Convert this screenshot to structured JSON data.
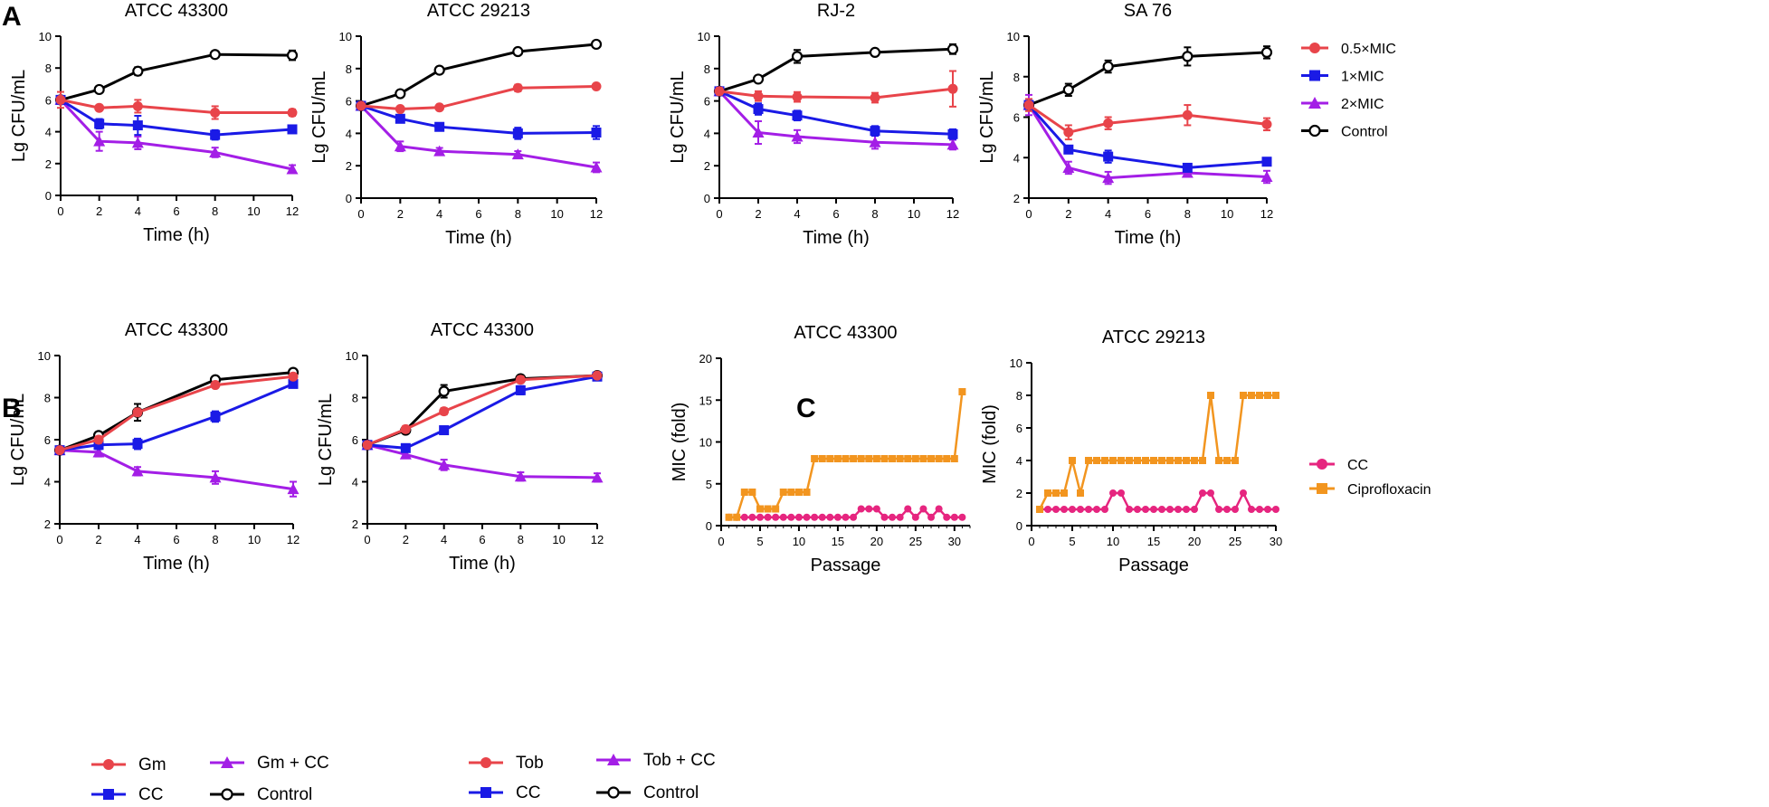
{
  "panel_labels": {
    "a": "A",
    "b": "B",
    "c": "C"
  },
  "colors": {
    "red": "#e8444a",
    "blue": "#1a1ae6",
    "purple": "#a31ee6",
    "black": "#000000",
    "pink": "#e6257f",
    "orange": "#f2951f"
  },
  "legend_a": [
    {
      "label": "0.5×MIC",
      "color": "red",
      "marker": "circle"
    },
    {
      "label": "1×MIC",
      "color": "blue",
      "marker": "square"
    },
    {
      "label": "2×MIC",
      "color": "purple",
      "marker": "triangle"
    },
    {
      "label": "Control",
      "color": "black",
      "marker": "open-circle"
    }
  ],
  "legend_b1": [
    {
      "label": "Gm",
      "color": "red",
      "marker": "circle"
    },
    {
      "label": "Gm + CC",
      "color": "purple",
      "marker": "triangle"
    },
    {
      "label": "CC",
      "color": "blue",
      "marker": "square"
    },
    {
      "label": "Control",
      "color": "black",
      "marker": "open-circle"
    }
  ],
  "legend_b2": [
    {
      "label": "Tob",
      "color": "red",
      "marker": "circle"
    },
    {
      "label": "Tob + CC",
      "color": "purple",
      "marker": "triangle"
    },
    {
      "label": "CC",
      "color": "blue",
      "marker": "square"
    },
    {
      "label": "Control",
      "color": "black",
      "marker": "open-circle"
    }
  ],
  "legend_c": [
    {
      "label": "CC",
      "color": "pink",
      "marker": "circle"
    },
    {
      "label": "Ciprofloxacin",
      "color": "orange",
      "marker": "square"
    }
  ],
  "chart_data": [
    {
      "id": "a1",
      "type": "line",
      "title": "ATCC 43300",
      "xlabel": "Time (h)",
      "ylabel": "Lg CFU/mL",
      "xlim": [
        0,
        12
      ],
      "ylim": [
        0,
        10
      ],
      "xticks": [
        0,
        2,
        4,
        6,
        8,
        10,
        12
      ],
      "yticks": [
        0,
        2,
        4,
        6,
        8,
        10
      ],
      "x": [
        0,
        2,
        4,
        8,
        12
      ],
      "series": [
        {
          "name": "0.5×MIC",
          "values": [
            6.0,
            5.5,
            5.6,
            5.2,
            5.2
          ],
          "err": [
            0.5,
            0.1,
            0.4,
            0.4,
            0.2
          ]
        },
        {
          "name": "1×MIC",
          "values": [
            6.0,
            4.5,
            4.4,
            3.8,
            4.15
          ],
          "err": [
            0.2,
            0.3,
            0.6,
            0.3,
            0.15
          ]
        },
        {
          "name": "2×MIC",
          "values": [
            6.0,
            3.4,
            3.3,
            2.7,
            1.65
          ],
          "err": [
            0.2,
            0.6,
            0.4,
            0.3,
            0.25
          ]
        },
        {
          "name": "Control",
          "values": [
            6.0,
            6.65,
            7.8,
            8.85,
            8.8
          ],
          "err": [
            0.1,
            0.2,
            0.25,
            0.15,
            0.3
          ]
        }
      ]
    },
    {
      "id": "a2",
      "type": "line",
      "title": "ATCC 29213",
      "xlabel": "Time (h)",
      "ylabel": "Lg CFU/mL",
      "xlim": [
        0,
        12
      ],
      "ylim": [
        0,
        10
      ],
      "xticks": [
        0,
        2,
        4,
        6,
        8,
        10,
        12
      ],
      "yticks": [
        0,
        2,
        4,
        6,
        8,
        10
      ],
      "x": [
        0,
        2,
        4,
        8,
        12
      ],
      "series": [
        {
          "name": "0.5×MIC",
          "values": [
            5.7,
            5.5,
            5.6,
            6.8,
            6.9
          ],
          "err": [
            0.1,
            0.1,
            0.1,
            0.2,
            0.15
          ]
        },
        {
          "name": "1×MIC",
          "values": [
            5.7,
            4.9,
            4.4,
            4.0,
            4.05
          ],
          "err": [
            0.1,
            0.1,
            0.1,
            0.35,
            0.4
          ]
        },
        {
          "name": "2×MIC",
          "values": [
            5.7,
            3.2,
            2.9,
            2.7,
            1.9
          ],
          "err": [
            0.1,
            0.3,
            0.2,
            0.2,
            0.3
          ]
        },
        {
          "name": "Control",
          "values": [
            5.7,
            6.45,
            7.9,
            9.05,
            9.5
          ],
          "err": [
            0.1,
            0.1,
            0.1,
            0.1,
            0.1
          ]
        }
      ]
    },
    {
      "id": "a3",
      "type": "line",
      "title": "RJ-2",
      "xlabel": "Time (h)",
      "ylabel": "Lg CFU/mL",
      "xlim": [
        0,
        12
      ],
      "ylim": [
        0,
        10
      ],
      "xticks": [
        0,
        2,
        4,
        6,
        8,
        10,
        12
      ],
      "yticks": [
        0,
        2,
        4,
        6,
        8,
        10
      ],
      "x": [
        0,
        2,
        4,
        8,
        12
      ],
      "series": [
        {
          "name": "0.5×MIC",
          "values": [
            6.6,
            6.3,
            6.25,
            6.2,
            6.75
          ],
          "err": [
            0.2,
            0.3,
            0.3,
            0.3,
            1.1
          ]
        },
        {
          "name": "1×MIC",
          "values": [
            6.6,
            5.5,
            5.1,
            4.15,
            3.95
          ],
          "err": [
            0.2,
            0.35,
            0.3,
            0.3,
            0.3
          ]
        },
        {
          "name": "2×MIC",
          "values": [
            6.6,
            4.05,
            3.8,
            3.45,
            3.3
          ],
          "err": [
            0.2,
            0.7,
            0.4,
            0.4,
            0.3
          ]
        },
        {
          "name": "Control",
          "values": [
            6.6,
            7.35,
            8.75,
            9.0,
            9.2
          ],
          "err": [
            0.2,
            0.2,
            0.4,
            0.15,
            0.3
          ]
        }
      ]
    },
    {
      "id": "a4",
      "type": "line",
      "title": "SA 76",
      "xlabel": "Time (h)",
      "ylabel": "Lg CFU/mL",
      "xlim": [
        0,
        12
      ],
      "ylim": [
        2,
        10
      ],
      "xticks": [
        0,
        2,
        4,
        6,
        8,
        10,
        12
      ],
      "yticks": [
        2,
        4,
        6,
        8,
        10
      ],
      "x": [
        0,
        2,
        4,
        8,
        12
      ],
      "series": [
        {
          "name": "0.5×MIC",
          "values": [
            6.6,
            5.25,
            5.7,
            6.1,
            5.65
          ],
          "err": [
            0.3,
            0.35,
            0.3,
            0.5,
            0.3
          ]
        },
        {
          "name": "1×MIC",
          "values": [
            6.6,
            4.4,
            4.05,
            3.5,
            3.8
          ],
          "err": [
            0.2,
            0.1,
            0.3,
            0.1,
            0.1
          ]
        },
        {
          "name": "2×MIC",
          "values": [
            6.6,
            3.5,
            3.0,
            3.25,
            3.05
          ],
          "err": [
            0.5,
            0.3,
            0.3,
            0.1,
            0.3
          ]
        },
        {
          "name": "Control",
          "values": [
            6.6,
            7.35,
            8.5,
            9.0,
            9.2
          ],
          "err": [
            0.2,
            0.3,
            0.3,
            0.45,
            0.3
          ]
        }
      ]
    },
    {
      "id": "b1",
      "type": "line",
      "title": "ATCC 43300",
      "xlabel": "Time (h)",
      "ylabel": "Lg CFU/mL",
      "xlim": [
        0,
        12
      ],
      "ylim": [
        2,
        10
      ],
      "xticks": [
        0,
        2,
        4,
        6,
        8,
        10,
        12
      ],
      "yticks": [
        2,
        4,
        6,
        8,
        10
      ],
      "x": [
        0,
        2,
        4,
        8,
        12
      ],
      "series": [
        {
          "name": "Gm",
          "values": [
            5.5,
            6.0,
            7.3,
            8.6,
            9.0
          ],
          "err": [
            0.1,
            0.15,
            0.15,
            0.1,
            0.1
          ]
        },
        {
          "name": "CC",
          "values": [
            5.5,
            5.75,
            5.8,
            7.1,
            8.65
          ],
          "err": [
            0.1,
            0.2,
            0.25,
            0.25,
            0.15
          ]
        },
        {
          "name": "Gm + CC",
          "values": [
            5.5,
            5.4,
            4.5,
            4.2,
            3.65
          ],
          "err": [
            0.1,
            0.2,
            0.2,
            0.3,
            0.35
          ]
        },
        {
          "name": "Control",
          "values": [
            5.5,
            6.2,
            7.3,
            8.85,
            9.2
          ],
          "err": [
            0.1,
            0.15,
            0.4,
            0.1,
            0.1
          ]
        }
      ]
    },
    {
      "id": "b2",
      "type": "line",
      "title": "ATCC 43300",
      "xlabel": "Time (h)",
      "ylabel": "Lg CFU/mL",
      "xlim": [
        0,
        12
      ],
      "ylim": [
        2,
        10
      ],
      "xticks": [
        0,
        2,
        4,
        6,
        8,
        10,
        12
      ],
      "yticks": [
        2,
        4,
        6,
        8,
        10
      ],
      "x": [
        0,
        2,
        4,
        8,
        12
      ],
      "series": [
        {
          "name": "Tob",
          "values": [
            5.75,
            6.5,
            7.35,
            8.85,
            9.05
          ],
          "err": [
            0.1,
            0.15,
            0.15,
            0.15,
            0.1
          ]
        },
        {
          "name": "CC",
          "values": [
            5.75,
            5.6,
            6.45,
            8.35,
            9.0
          ],
          "err": [
            0.1,
            0.1,
            0.1,
            0.2,
            0.1
          ]
        },
        {
          "name": "Tob + CC",
          "values": [
            5.75,
            5.3,
            4.8,
            4.25,
            4.2
          ],
          "err": [
            0.1,
            0.15,
            0.25,
            0.2,
            0.2
          ]
        },
        {
          "name": "Control",
          "values": [
            5.75,
            6.45,
            8.3,
            8.9,
            9.05
          ],
          "err": [
            0.1,
            0.1,
            0.3,
            0.1,
            0.1
          ]
        }
      ]
    },
    {
      "id": "c1",
      "type": "line",
      "title": "ATCC 43300",
      "xlabel": "Passage",
      "ylabel": "MIC (fold)",
      "xlim": [
        0,
        32
      ],
      "ylim": [
        0,
        20
      ],
      "xticks": [
        0,
        5,
        10,
        15,
        20,
        25,
        30
      ],
      "yticks": [
        0,
        5,
        10,
        15,
        20
      ],
      "x": [
        1,
        2,
        3,
        4,
        5,
        6,
        7,
        8,
        9,
        10,
        11,
        12,
        13,
        14,
        15,
        16,
        17,
        18,
        19,
        20,
        21,
        22,
        23,
        24,
        25,
        26,
        27,
        28,
        29,
        30,
        31
      ],
      "series": [
        {
          "name": "CC",
          "values": [
            1,
            1,
            1,
            1,
            1,
            1,
            1,
            1,
            1,
            1,
            1,
            1,
            1,
            1,
            1,
            1,
            1,
            2,
            2,
            2,
            1,
            1,
            1,
            2,
            1,
            2,
            1,
            2,
            1,
            1,
            1
          ]
        },
        {
          "name": "Ciprofloxacin",
          "values": [
            1,
            1,
            4,
            4,
            2,
            2,
            2,
            4,
            4,
            4,
            4,
            8,
            8,
            8,
            8,
            8,
            8,
            8,
            8,
            8,
            8,
            8,
            8,
            8,
            8,
            8,
            8,
            8,
            8,
            8,
            16
          ]
        }
      ]
    },
    {
      "id": "c2",
      "type": "line",
      "title": "ATCC 29213",
      "xlabel": "Passage",
      "ylabel": "MIC (fold)",
      "xlim": [
        0,
        30
      ],
      "ylim": [
        0,
        10
      ],
      "xticks": [
        0,
        5,
        10,
        15,
        20,
        25,
        30
      ],
      "yticks": [
        0,
        2,
        4,
        6,
        8,
        10
      ],
      "x": [
        1,
        2,
        3,
        4,
        5,
        6,
        7,
        8,
        9,
        10,
        11,
        12,
        13,
        14,
        15,
        16,
        17,
        18,
        19,
        20,
        21,
        22,
        23,
        24,
        25,
        26,
        27,
        28,
        29,
        30
      ],
      "series": [
        {
          "name": "CC",
          "values": [
            1,
            1,
            1,
            1,
            1,
            1,
            1,
            1,
            1,
            2,
            2,
            1,
            1,
            1,
            1,
            1,
            1,
            1,
            1,
            1,
            2,
            2,
            1,
            1,
            1,
            2,
            1,
            1,
            1,
            1
          ]
        },
        {
          "name": "Ciprofloxacin",
          "values": [
            1,
            2,
            2,
            2,
            4,
            2,
            4,
            4,
            4,
            4,
            4,
            4,
            4,
            4,
            4,
            4,
            4,
            4,
            4,
            4,
            4,
            8,
            4,
            4,
            4,
            8,
            8,
            8,
            8,
            8
          ]
        }
      ]
    }
  ]
}
